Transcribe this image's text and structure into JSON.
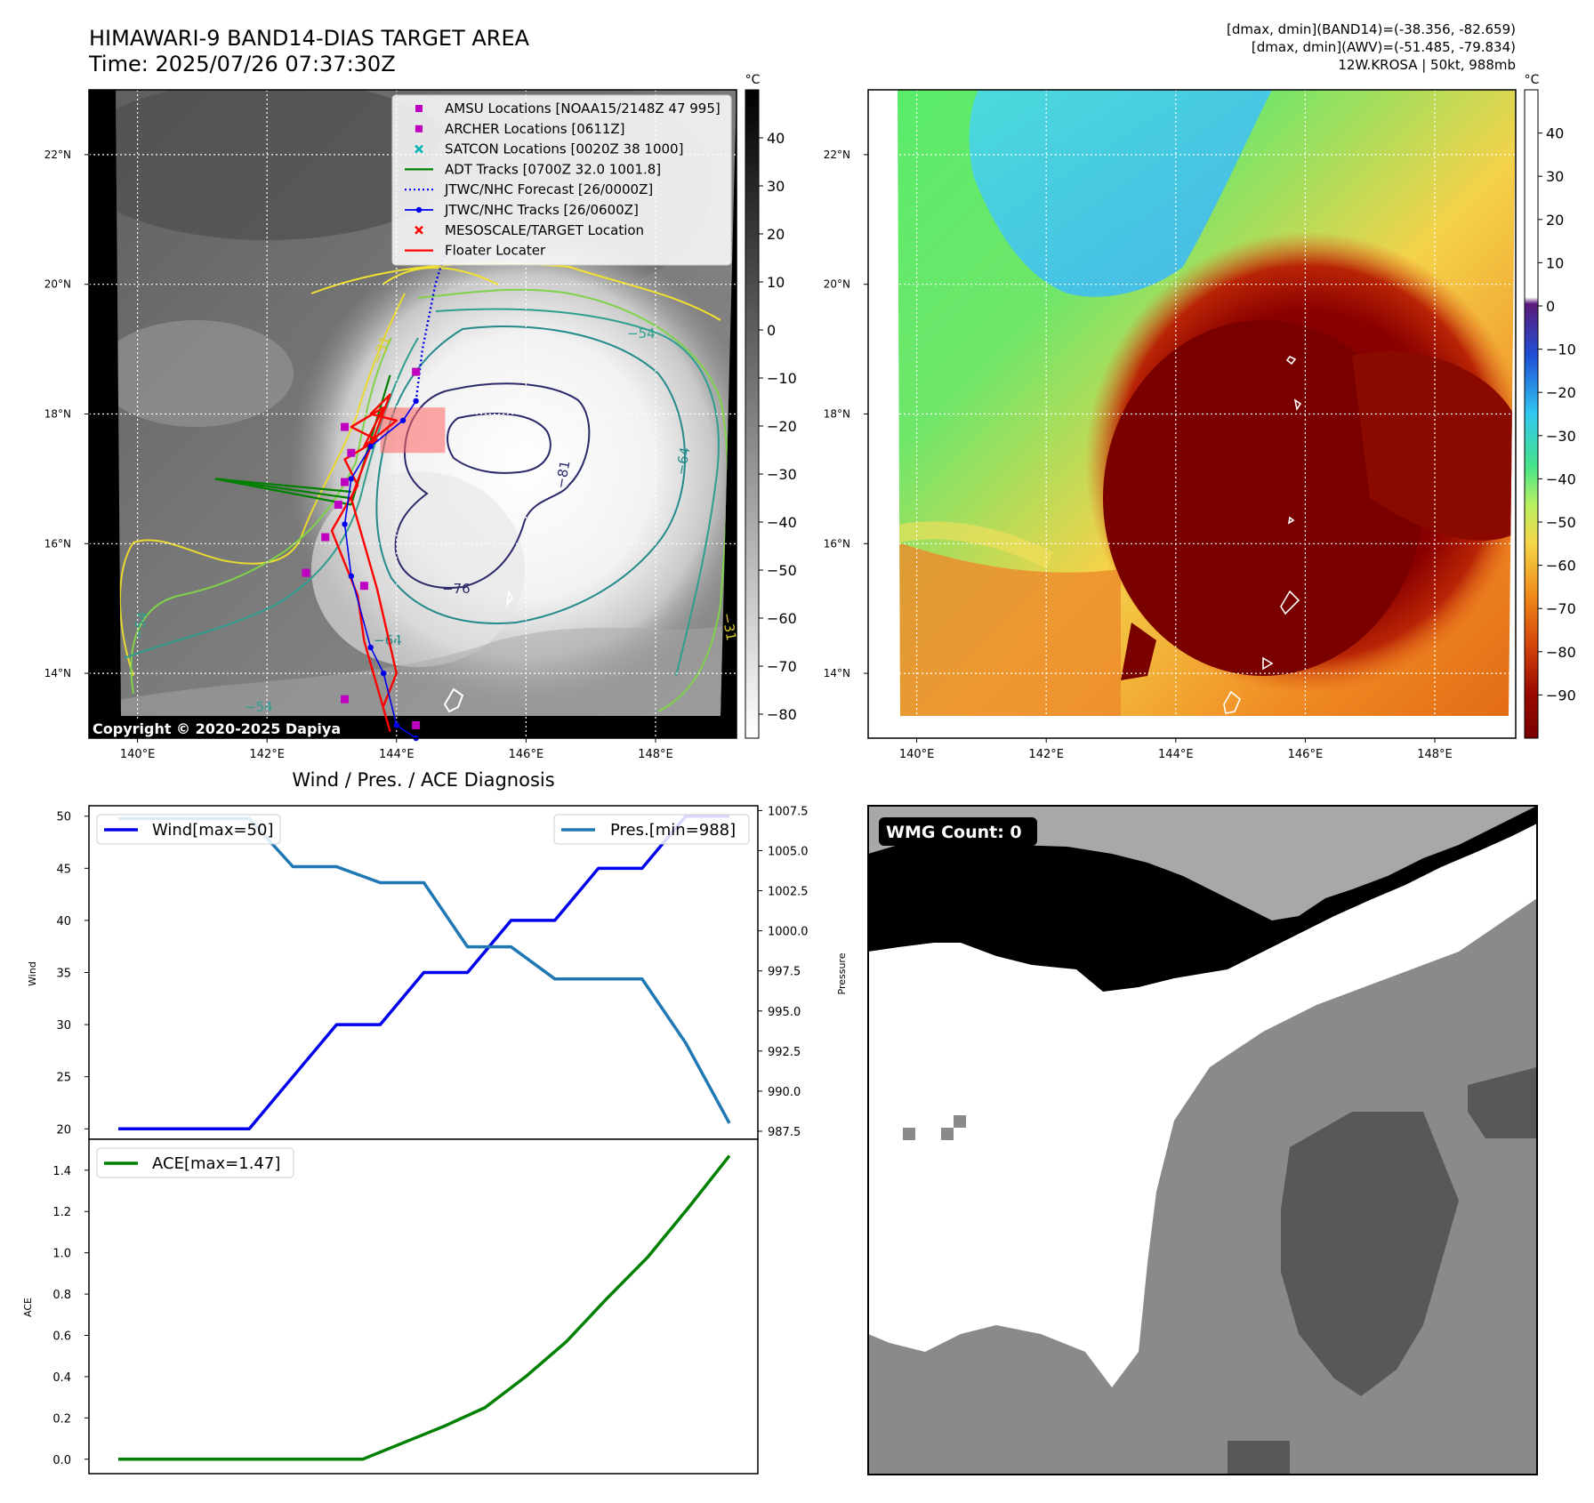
{
  "header": {
    "title_line1": "HIMAWARI-9 BAND14-DIAS TARGET AREA",
    "title_line2": "Time: 2025/07/26 07:37:30Z",
    "info_line1": "[dmax, dmin](BAND14)=(-38.356, -82.659)",
    "info_line2": "[dmax, dmin](AWV)=(-51.485, -79.834)",
    "info_line3": "12W.KROSA | 50kt, 988mb"
  },
  "copyright": "Copyright © 2020-2025 Dapiya",
  "wmg_label": "WMG Count: 0",
  "colors": {
    "wind": "#0000ee",
    "pres": "#1f77b4",
    "ace": "#008000",
    "amsu": "#c000c0",
    "satcon": "#00b4b4",
    "adt": "#008000",
    "jtwc": "#0000ee",
    "target": "#ff0000",
    "floater": "#ff0000"
  },
  "chart_data": [
    {
      "type": "map",
      "title": "HIMAWARI-9 BAND14-DIAS TARGET AREA",
      "lon_ticks": [
        "140°E",
        "142°E",
        "144°E",
        "146°E",
        "148°E"
      ],
      "lat_ticks": [
        "14°N",
        "16°N",
        "18°N",
        "20°N",
        "22°N"
      ],
      "xlim": [
        139.25,
        149.25
      ],
      "ylim": [
        13.0,
        23.0
      ],
      "colorbar": {
        "unit": "°C",
        "ticks": [
          "40",
          "30",
          "20",
          "10",
          "0",
          "−10",
          "−20",
          "−30",
          "−40",
          "−50",
          "−60",
          "−70",
          "−80"
        ],
        "range": [
          -85,
          50
        ]
      },
      "contour_labels": [
        "−54",
        "−31",
        "−81",
        "−64",
        "−76",
        "−54",
        "−64",
        "−54",
        "−31"
      ],
      "legend": {
        "placement": "upper-right",
        "entries": [
          {
            "marker": "square",
            "color": "amsu",
            "label": "AMSU Locations [NOAA15/2148Z 47 995]"
          },
          {
            "marker": "square",
            "color": "amsu",
            "label": "ARCHER Locations [0611Z]"
          },
          {
            "marker": "x",
            "color": "satcon",
            "label": "SATCON Locations [0020Z 38 1000]"
          },
          {
            "marker": "line",
            "color": "adt",
            "label": "ADT Tracks [0700Z 32.0 1001.8]"
          },
          {
            "marker": "dotted",
            "color": "jtwc",
            "label": "JTWC/NHC Forecast [26/0000Z]"
          },
          {
            "marker": "line-dot",
            "color": "jtwc",
            "label": "JTWC/NHC Tracks [26/0600Z]"
          },
          {
            "marker": "x",
            "color": "target",
            "label": "MESOSCALE/TARGET Location"
          },
          {
            "marker": "line",
            "color": "floater",
            "label": "Floater Locater"
          }
        ]
      },
      "jtwc_track": [
        [
          144.3,
          13.0
        ],
        [
          144.0,
          13.2
        ],
        [
          143.8,
          14.0
        ],
        [
          143.6,
          14.4
        ],
        [
          143.3,
          15.5
        ],
        [
          143.2,
          16.3
        ],
        [
          143.3,
          17.0
        ],
        [
          143.6,
          17.5
        ],
        [
          144.1,
          17.9
        ],
        [
          144.3,
          18.2
        ]
      ],
      "jtwc_forecast": [
        [
          144.3,
          18.2
        ],
        [
          144.4,
          19.0
        ],
        [
          144.6,
          20.0
        ],
        [
          144.75,
          20.5
        ]
      ],
      "amsu_points": [
        [
          142.6,
          15.55
        ],
        [
          142.9,
          16.1
        ],
        [
          143.1,
          16.6
        ],
        [
          143.2,
          16.95
        ],
        [
          143.3,
          17.4
        ],
        [
          143.2,
          17.8
        ],
        [
          144.3,
          18.65
        ],
        [
          143.5,
          15.35
        ],
        [
          143.2,
          13.6
        ]
      ],
      "archer_points": [
        [
          144.3,
          13.2
        ]
      ],
      "adt_tracks": [
        [
          [
            141.2,
            17.0
          ],
          [
            143.3,
            16.8
          ]
        ],
        [
          [
            141.2,
            17.0
          ],
          [
            143.3,
            16.7
          ]
        ],
        [
          [
            141.2,
            17.0
          ],
          [
            143.3,
            16.6
          ]
        ],
        [
          [
            143.3,
            16.6
          ],
          [
            143.9,
            18.6
          ]
        ]
      ],
      "target_box": {
        "lon": [
          143.75,
          144.75
        ],
        "lat": [
          17.4,
          18.1
        ]
      }
    },
    {
      "type": "map",
      "title": "",
      "lon_ticks": [
        "140°E",
        "142°E",
        "144°E",
        "146°E",
        "148°E"
      ],
      "lat_ticks": [
        "14°N",
        "16°N",
        "18°N",
        "20°N",
        "22°N"
      ],
      "xlim": [
        139.25,
        149.25
      ],
      "ylim": [
        13.0,
        23.0
      ],
      "colorbar": {
        "unit": "°C",
        "ticks": [
          "40",
          "30",
          "20",
          "10",
          "0",
          "−10",
          "−20",
          "−30",
          "−40",
          "−50",
          "−60",
          "−70",
          "−80",
          "−90"
        ],
        "range": [
          -100,
          50
        ]
      }
    },
    {
      "type": "line",
      "title": "Wind / Pres. / ACE Diagnosis",
      "ylabel": "Wind",
      "y2label": "Pressure",
      "xlabel": "",
      "ylim": [
        19,
        51
      ],
      "y2lim": [
        987.0,
        1007.8
      ],
      "yticks": [
        "20",
        "25",
        "30",
        "35",
        "40",
        "45",
        "50"
      ],
      "y2ticks": [
        "987.5",
        "990.0",
        "992.5",
        "995.0",
        "997.5",
        "1000.0",
        "1002.5",
        "1005.0",
        "1007.5"
      ],
      "series": [
        {
          "name": "Wind[max=50]",
          "axis": "left",
          "color": "wind",
          "values": [
            20,
            20,
            20,
            20,
            25,
            30,
            30,
            35,
            35,
            40,
            40,
            45,
            45,
            50,
            50
          ]
        },
        {
          "name": "Pres.[min=988]",
          "axis": "right",
          "color": "pres",
          "values": [
            1007,
            1007,
            1007,
            1007,
            1004,
            1004,
            1003,
            1003,
            999,
            999,
            997,
            997,
            997,
            993,
            988
          ]
        }
      ]
    },
    {
      "type": "line",
      "title": "",
      "ylabel": "ACE",
      "ylim": [
        -0.07,
        1.55
      ],
      "yticks": [
        "0.0",
        "0.2",
        "0.4",
        "0.6",
        "0.8",
        "1.0",
        "1.2",
        "1.4"
      ],
      "series": [
        {
          "name": "ACE[max=1.47]",
          "color": "ace",
          "values": [
            0,
            0,
            0,
            0,
            0,
            0,
            0,
            0.08,
            0.16,
            0.25,
            0.4,
            0.57,
            0.78,
            0.98,
            1.22,
            1.47
          ]
        }
      ]
    },
    {
      "type": "heatmap",
      "title": "WMG Count: 0",
      "levels": [
        "black",
        "white",
        "light-gray",
        "gray",
        "dark-gray"
      ]
    }
  ]
}
